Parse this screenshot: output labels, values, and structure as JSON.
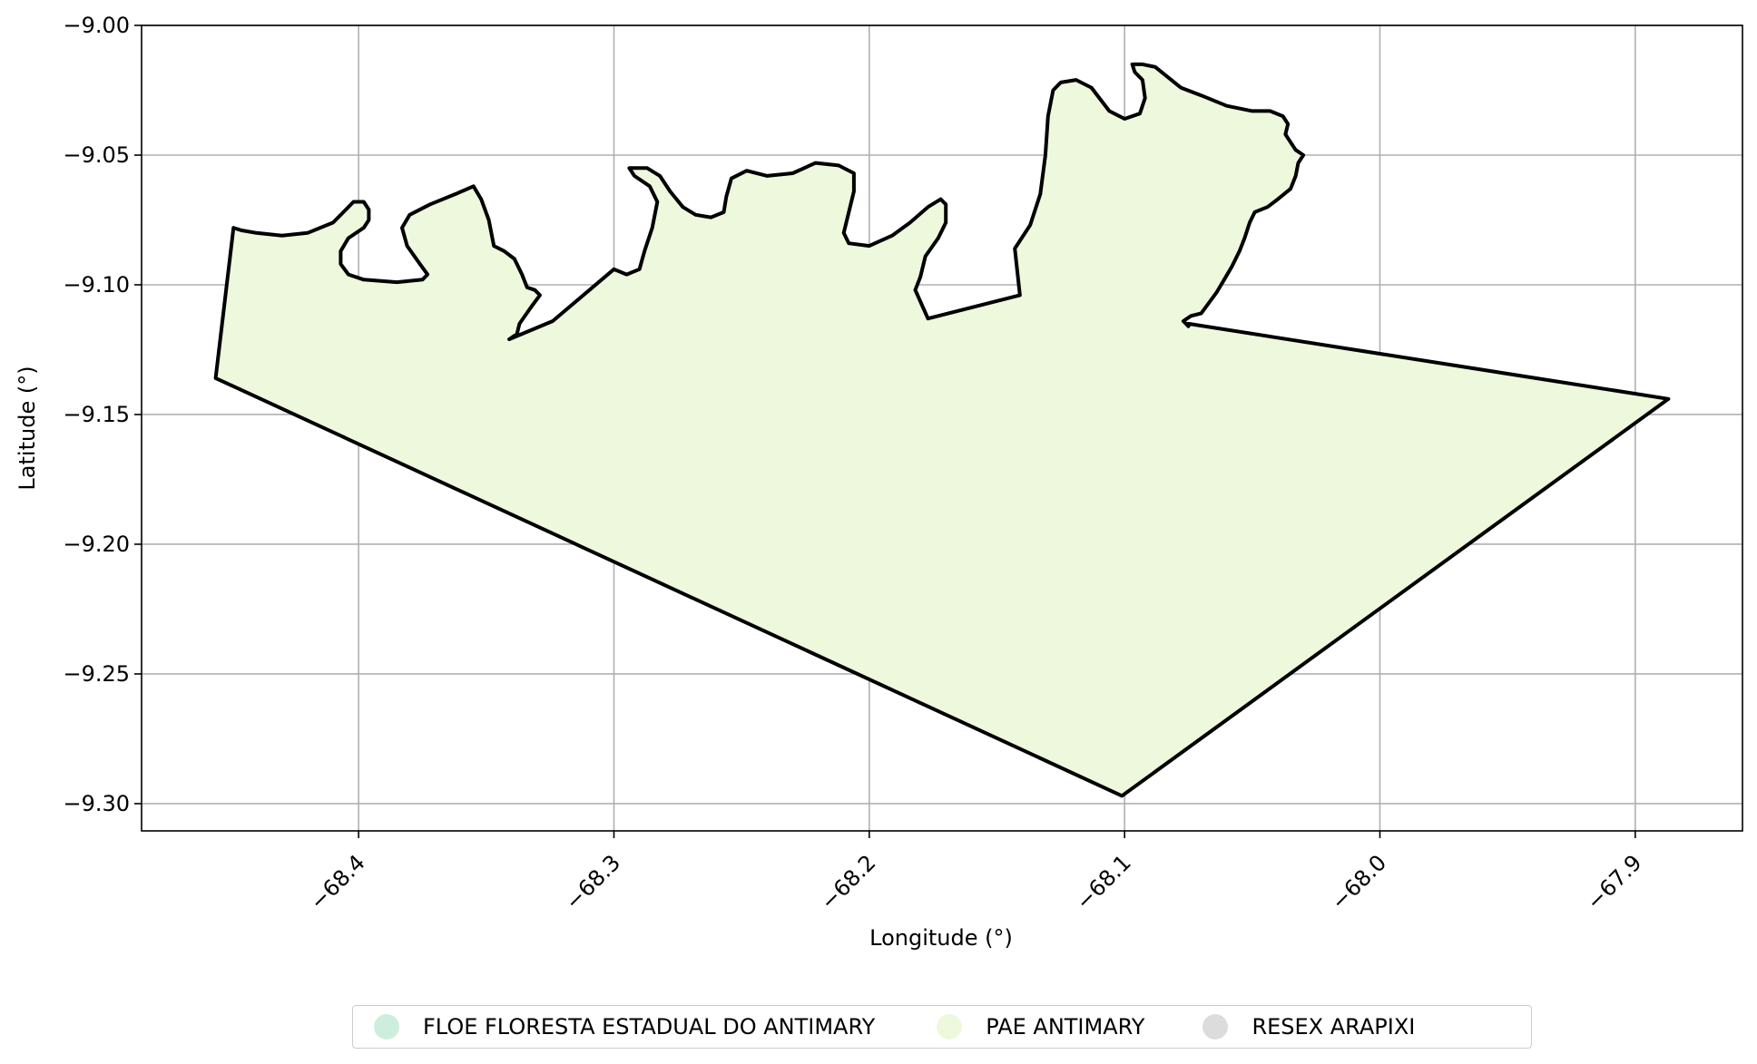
{
  "chart_data": {
    "type": "map",
    "xlabel": "Longitude (°)",
    "ylabel": "Latitude (°)",
    "xlim": [
      -68.485,
      -67.858
    ],
    "ylim": [
      -9.3105,
      -9.0
    ],
    "xticks": [
      -68.4,
      -68.3,
      -68.2,
      -68.1,
      -68.0,
      -67.9
    ],
    "xtick_labels": [
      "−68.4",
      "−68.3",
      "−68.2",
      "−68.1",
      "−68.0",
      "−67.9"
    ],
    "yticks": [
      -9.0,
      -9.05,
      -9.1,
      -9.15,
      -9.2,
      -9.25,
      -9.3
    ],
    "ytick_labels": [
      "−9.00",
      "−9.05",
      "−9.10",
      "−9.15",
      "−9.20",
      "−9.25",
      "−9.30"
    ],
    "grid": true,
    "legend_position": "bottom-center, below plot",
    "polygon": {
      "name": "PAE ANTIMARY",
      "fill": "#edf8dd",
      "stroke": "#000000",
      "coordinates": [
        [
          -68.456,
          -9.136
        ],
        [
          -68.449,
          -9.078
        ],
        [
          -68.446,
          -9.079
        ],
        [
          -68.44,
          -9.08
        ],
        [
          -68.43,
          -9.081
        ],
        [
          -68.42,
          -9.08
        ],
        [
          -68.41,
          -9.076
        ],
        [
          -68.405,
          -9.071
        ],
        [
          -68.402,
          -9.068
        ],
        [
          -68.398,
          -9.068
        ],
        [
          -68.396,
          -9.071
        ],
        [
          -68.396,
          -9.075
        ],
        [
          -68.398,
          -9.078
        ],
        [
          -68.404,
          -9.082
        ],
        [
          -68.407,
          -9.087
        ],
        [
          -68.407,
          -9.092
        ],
        [
          -68.404,
          -9.096
        ],
        [
          -68.398,
          -9.098
        ],
        [
          -68.385,
          -9.099
        ],
        [
          -68.375,
          -9.098
        ],
        [
          -68.373,
          -9.096
        ],
        [
          -68.376,
          -9.092
        ],
        [
          -68.381,
          -9.085
        ],
        [
          -68.383,
          -9.078
        ],
        [
          -68.38,
          -9.073
        ],
        [
          -68.372,
          -9.069
        ],
        [
          -68.362,
          -9.065
        ],
        [
          -68.355,
          -9.062
        ],
        [
          -68.352,
          -9.067
        ],
        [
          -68.349,
          -9.075
        ],
        [
          -68.347,
          -9.085
        ],
        [
          -68.343,
          -9.087
        ],
        [
          -68.339,
          -9.09
        ],
        [
          -68.336,
          -9.096
        ],
        [
          -68.334,
          -9.101
        ],
        [
          -68.331,
          -9.102
        ],
        [
          -68.329,
          -9.104
        ],
        [
          -68.332,
          -9.108
        ],
        [
          -68.337,
          -9.115
        ],
        [
          -68.338,
          -9.119
        ],
        [
          -68.341,
          -9.121
        ],
        [
          -68.324,
          -9.114
        ],
        [
          -68.3,
          -9.094
        ],
        [
          -68.295,
          -9.096
        ],
        [
          -68.29,
          -9.094
        ],
        [
          -68.288,
          -9.087
        ],
        [
          -68.285,
          -9.078
        ],
        [
          -68.283,
          -9.068
        ],
        [
          -68.286,
          -9.062
        ],
        [
          -68.292,
          -9.058
        ],
        [
          -68.294,
          -9.055
        ],
        [
          -68.287,
          -9.055
        ],
        [
          -68.282,
          -9.058
        ],
        [
          -68.278,
          -9.064
        ],
        [
          -68.273,
          -9.07
        ],
        [
          -68.268,
          -9.073
        ],
        [
          -68.262,
          -9.074
        ],
        [
          -68.257,
          -9.072
        ],
        [
          -68.256,
          -9.066
        ],
        [
          -68.254,
          -9.059
        ],
        [
          -68.248,
          -9.056
        ],
        [
          -68.24,
          -9.058
        ],
        [
          -68.23,
          -9.057
        ],
        [
          -68.221,
          -9.053
        ],
        [
          -68.212,
          -9.054
        ],
        [
          -68.206,
          -9.057
        ],
        [
          -68.206,
          -9.064
        ],
        [
          -68.208,
          -9.072
        ],
        [
          -68.21,
          -9.08
        ],
        [
          -68.208,
          -9.084
        ],
        [
          -68.2,
          -9.085
        ],
        [
          -68.191,
          -9.081
        ],
        [
          -68.184,
          -9.076
        ],
        [
          -68.177,
          -9.07
        ],
        [
          -68.172,
          -9.067
        ],
        [
          -68.17,
          -9.069
        ],
        [
          -68.17,
          -9.076
        ],
        [
          -68.173,
          -9.082
        ],
        [
          -68.178,
          -9.089
        ],
        [
          -68.18,
          -9.097
        ],
        [
          -68.182,
          -9.102
        ],
        [
          -68.177,
          -9.113
        ],
        [
          -68.141,
          -9.104
        ],
        [
          -68.142,
          -9.095
        ],
        [
          -68.143,
          -9.086
        ],
        [
          -68.137,
          -9.077
        ],
        [
          -68.133,
          -9.065
        ],
        [
          -68.131,
          -9.05
        ],
        [
          -68.13,
          -9.035
        ],
        [
          -68.128,
          -9.025
        ],
        [
          -68.125,
          -9.022
        ],
        [
          -68.119,
          -9.021
        ],
        [
          -68.113,
          -9.024
        ],
        [
          -68.106,
          -9.033
        ],
        [
          -68.1,
          -9.036
        ],
        [
          -68.094,
          -9.034
        ],
        [
          -68.092,
          -9.028
        ],
        [
          -68.093,
          -9.021
        ],
        [
          -68.096,
          -9.018
        ],
        [
          -68.097,
          -9.015
        ],
        [
          -68.093,
          -9.015
        ],
        [
          -68.088,
          -9.016
        ],
        [
          -68.083,
          -9.02
        ],
        [
          -68.078,
          -9.024
        ],
        [
          -68.07,
          -9.027
        ],
        [
          -68.06,
          -9.031
        ],
        [
          -68.05,
          -9.033
        ],
        [
          -68.043,
          -9.033
        ],
        [
          -68.038,
          -9.035
        ],
        [
          -68.036,
          -9.038
        ],
        [
          -68.037,
          -9.042
        ],
        [
          -68.035,
          -9.045
        ],
        [
          -68.033,
          -9.048
        ],
        [
          -68.03,
          -9.05
        ],
        [
          -68.032,
          -9.053
        ],
        [
          -68.033,
          -9.058
        ],
        [
          -68.035,
          -9.063
        ],
        [
          -68.04,
          -9.067
        ],
        [
          -68.044,
          -9.07
        ],
        [
          -68.049,
          -9.072
        ],
        [
          -68.051,
          -9.076
        ],
        [
          -68.053,
          -9.082
        ],
        [
          -68.055,
          -9.087
        ],
        [
          -68.058,
          -9.093
        ],
        [
          -68.061,
          -9.098
        ],
        [
          -68.064,
          -9.103
        ],
        [
          -68.067,
          -9.107
        ],
        [
          -68.07,
          -9.111
        ],
        [
          -68.074,
          -9.112
        ],
        [
          -68.077,
          -9.114
        ],
        [
          -68.075,
          -9.116
        ],
        [
          -68.075,
          -9.115
        ],
        [
          -67.887,
          -9.144
        ],
        [
          -68.101,
          -9.297
        ]
      ]
    }
  },
  "legend": {
    "items": [
      {
        "label": "FLOE FLORESTA ESTADUAL DO ANTIMARY",
        "color": "#cdeedc"
      },
      {
        "label": "PAE ANTIMARY",
        "color": "#edf8dd"
      },
      {
        "label": "RESEX ARAPIXI",
        "color": "#dcdcdc"
      }
    ]
  }
}
